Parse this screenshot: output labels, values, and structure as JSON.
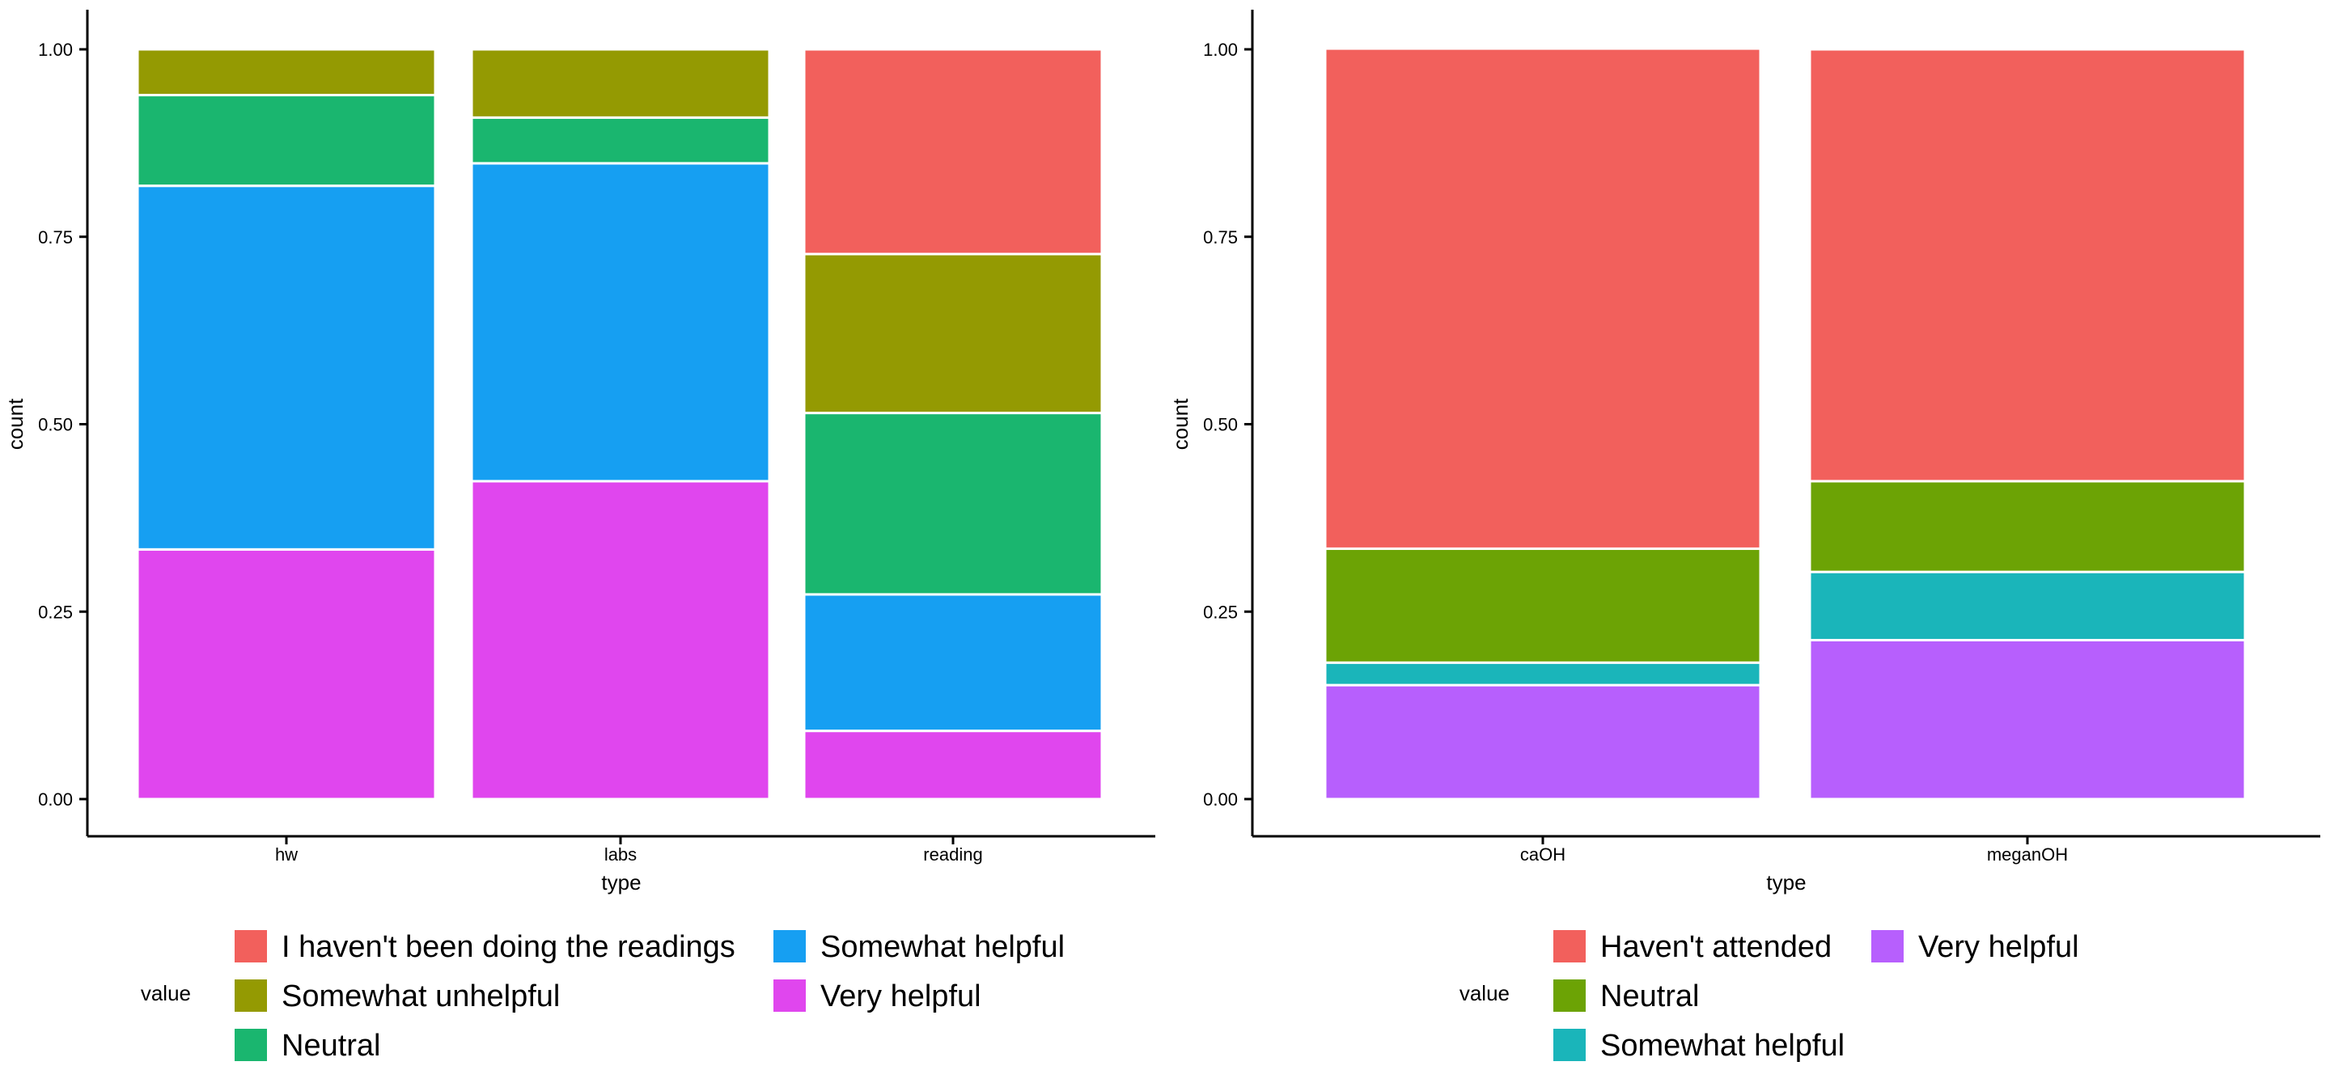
{
  "chart_data": [
    {
      "type": "bar",
      "stacked": true,
      "xlabel": "type",
      "ylabel": "count",
      "ylim": [
        0,
        1
      ],
      "yticks": [
        "0.00",
        "0.25",
        "0.50",
        "0.75",
        "1.00"
      ],
      "yticks_values": [
        0,
        0.25,
        0.5,
        0.75,
        1.0
      ],
      "categories": [
        "hw",
        "labs",
        "reading"
      ],
      "legend_title": "value",
      "legend_position": "bottom",
      "series": [
        {
          "name": "Very helpful",
          "color": "#E046EE",
          "values": [
            0.333,
            0.424,
            0.091
          ]
        },
        {
          "name": "Somewhat helpful",
          "color": "#169FF2",
          "values": [
            0.485,
            0.424,
            0.182
          ]
        },
        {
          "name": "Neutral",
          "color": "#1AB66F",
          "values": [
            0.121,
            0.061,
            0.242
          ]
        },
        {
          "name": "Somewhat unhelpful",
          "color": "#949A02",
          "values": [
            0.061,
            0.091,
            0.212
          ]
        },
        {
          "name": "I haven't been doing the readings",
          "color": "#F2605C",
          "values": [
            0,
            0,
            0.273
          ]
        }
      ],
      "legend_order": [
        "I haven't been doing the readings",
        "Somewhat unhelpful",
        "Neutral",
        "Somewhat helpful",
        "Very helpful"
      ]
    },
    {
      "type": "bar",
      "stacked": true,
      "xlabel": "type",
      "ylabel": "count",
      "ylim": [
        0,
        1
      ],
      "yticks": [
        "0.00",
        "0.25",
        "0.50",
        "0.75",
        "1.00"
      ],
      "yticks_values": [
        0,
        0.25,
        0.5,
        0.75,
        1.0
      ],
      "categories": [
        "caOH",
        "meganOH"
      ],
      "legend_title": "value",
      "legend_position": "bottom",
      "series": [
        {
          "name": "Very helpful",
          "color": "#B75FFD",
          "values": [
            0.152,
            0.212
          ]
        },
        {
          "name": "Somewhat helpful",
          "color": "#1AB5BA",
          "values": [
            0.03,
            0.091
          ]
        },
        {
          "name": "Neutral",
          "color": "#6CA305",
          "values": [
            0.152,
            0.121
          ]
        },
        {
          "name": "Haven't attended",
          "color": "#F2605C",
          "values": [
            0.667,
            0.576
          ]
        }
      ],
      "legend_order": [
        "Haven't attended",
        "Neutral",
        "Somewhat helpful",
        "Very helpful"
      ]
    }
  ]
}
